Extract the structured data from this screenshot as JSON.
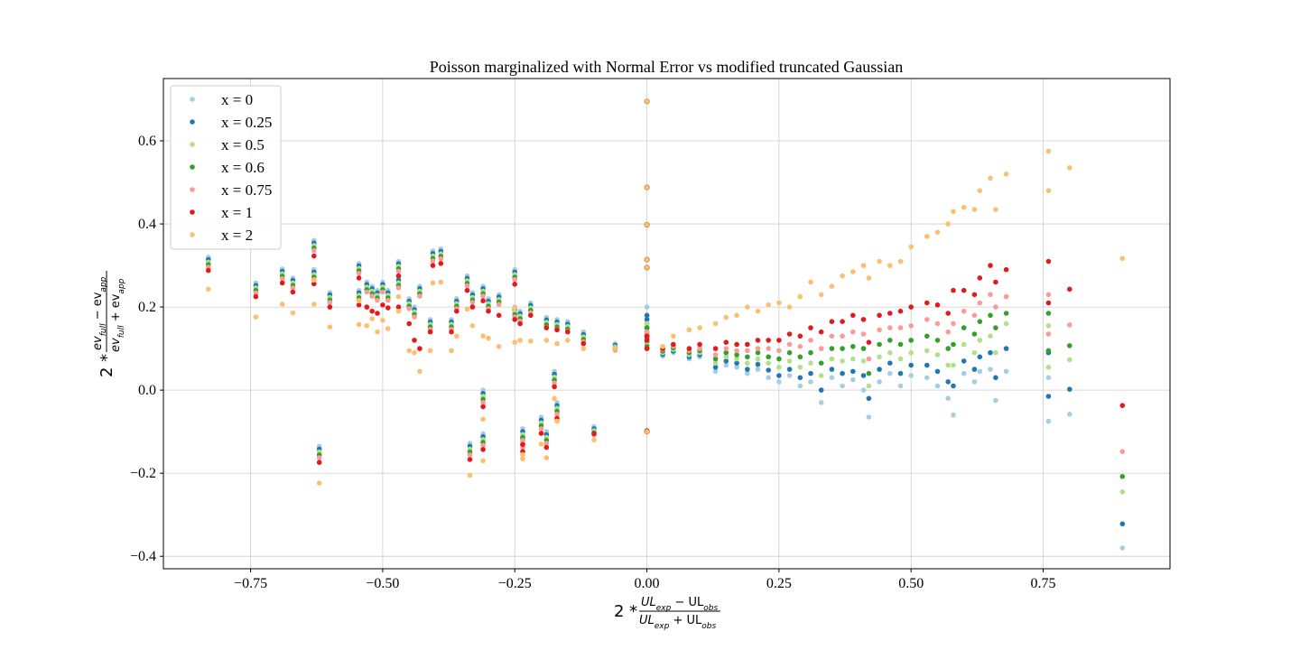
{
  "chart_data": {
    "type": "scatter",
    "title": "Poisson marginalized with Normal Error vs modified truncated Gaussian",
    "xlabel": {
      "prefix": "2 *",
      "numerator": "UL_exp − UL_obs",
      "denominator": "UL_exp + UL_obs",
      "num_parts": [
        "UL",
        "exp",
        " − UL",
        "obs"
      ],
      "den_parts": [
        "UL",
        "exp",
        " + UL",
        "obs"
      ]
    },
    "ylabel": {
      "prefix": "2 *",
      "numerator": "ev_full − ev_app",
      "denominator": "ev_full + ev_app",
      "num_parts": [
        "ev",
        "full",
        " − ev",
        "app"
      ],
      "den_parts": [
        "ev",
        "full",
        " + ev",
        "app"
      ]
    },
    "xlim": [
      -0.915,
      0.99
    ],
    "ylim": [
      -0.43,
      0.75
    ],
    "xticks": [
      -0.75,
      -0.5,
      -0.25,
      0.0,
      0.25,
      0.5,
      0.75
    ],
    "xtick_labels": [
      "−0.75",
      "−0.50",
      "−0.25",
      "0.00",
      "0.25",
      "0.50",
      "0.75"
    ],
    "yticks": [
      -0.4,
      -0.2,
      0.0,
      0.2,
      0.4,
      0.6
    ],
    "ytick_labels": [
      "−0.4",
      "−0.2",
      "0.0",
      "0.2",
      "0.4",
      "0.6"
    ],
    "grid": true,
    "legend_position": "top-left",
    "series": [
      {
        "name": "x = 0",
        "color": "#a6cee3",
        "key": "x0"
      },
      {
        "name": "x = 0.25",
        "color": "#1f78b4",
        "key": "x025"
      },
      {
        "name": "x = 0.5",
        "color": "#b2df8a",
        "key": "x05"
      },
      {
        "name": "x = 0.6",
        "color": "#33a02c",
        "key": "x06"
      },
      {
        "name": "x = 0.75",
        "color": "#fb9a99",
        "key": "x075"
      },
      {
        "name": "x = 1",
        "color": "#e31a1c",
        "key": "x1"
      },
      {
        "name": "x = 2",
        "color": "#fdbf6f",
        "key": "x2"
      }
    ],
    "points": [
      {
        "x": -0.83,
        "x0": 0.32,
        "x025": 0.314,
        "x05": 0.308,
        "x06": 0.302,
        "x075": 0.296,
        "x1": 0.288,
        "x2": 0.243
      },
      {
        "x": -0.74,
        "x0": 0.258,
        "x025": 0.252,
        "x05": 0.246,
        "x06": 0.24,
        "x075": 0.234,
        "x1": 0.225,
        "x2": 0.176
      },
      {
        "x": -0.69,
        "x0": 0.292,
        "x025": 0.286,
        "x05": 0.28,
        "x06": 0.274,
        "x075": 0.268,
        "x1": 0.258,
        "x2": 0.207
      },
      {
        "x": -0.67,
        "x0": 0.27,
        "x025": 0.264,
        "x05": 0.258,
        "x06": 0.252,
        "x075": 0.246,
        "x1": 0.236,
        "x2": 0.186
      },
      {
        "x": -0.63,
        "x0": 0.36,
        "x025": 0.354,
        "x05": 0.348,
        "x06": 0.342,
        "x075": 0.336,
        "x1": 0.323,
        "x2": 0.265
      },
      {
        "x": -0.63,
        "x0": 0.29,
        "x025": 0.284,
        "x05": 0.278,
        "x06": 0.272,
        "x075": 0.266,
        "x1": 0.256,
        "x2": 0.207
      },
      {
        "x": -0.62,
        "x0": -0.135,
        "x025": -0.142,
        "x05": -0.149,
        "x06": -0.156,
        "x075": -0.163,
        "x1": -0.174,
        "x2": -0.224
      },
      {
        "x": -0.6,
        "x0": 0.235,
        "x025": 0.229,
        "x05": 0.223,
        "x06": 0.217,
        "x075": 0.211,
        "x1": 0.2,
        "x2": 0.152
      },
      {
        "x": -0.545,
        "x0": 0.305,
        "x025": 0.299,
        "x05": 0.293,
        "x06": 0.287,
        "x075": 0.281,
        "x1": 0.27,
        "x2": 0.215
      },
      {
        "x": -0.545,
        "x0": 0.24,
        "x025": 0.234,
        "x05": 0.228,
        "x06": 0.222,
        "x075": 0.216,
        "x1": 0.205,
        "x2": 0.158
      },
      {
        "x": -0.53,
        "x0": 0.26,
        "x025": 0.254,
        "x05": 0.248,
        "x06": 0.242,
        "x075": 0.236,
        "x1": 0.2,
        "x2": 0.155
      },
      {
        "x": -0.52,
        "x0": 0.25,
        "x025": 0.244,
        "x05": 0.238,
        "x06": 0.232,
        "x075": 0.226,
        "x1": 0.19,
        "x2": 0.172
      },
      {
        "x": -0.51,
        "x0": 0.24,
        "x025": 0.234,
        "x05": 0.228,
        "x06": 0.222,
        "x075": 0.216,
        "x1": 0.185,
        "x2": 0.14
      },
      {
        "x": -0.5,
        "x0": 0.26,
        "x025": 0.254,
        "x05": 0.248,
        "x06": 0.242,
        "x075": 0.236,
        "x1": 0.205,
        "x2": 0.168
      },
      {
        "x": -0.49,
        "x0": 0.24,
        "x025": 0.234,
        "x05": 0.228,
        "x06": 0.222,
        "x075": 0.216,
        "x1": 0.198,
        "x2": 0.148
      },
      {
        "x": -0.47,
        "x0": 0.31,
        "x025": 0.304,
        "x05": 0.298,
        "x06": 0.292,
        "x075": 0.286,
        "x1": 0.275,
        "x2": 0.225
      },
      {
        "x": -0.47,
        "x0": 0.27,
        "x025": 0.264,
        "x05": 0.258,
        "x06": 0.252,
        "x075": 0.246,
        "x1": 0.2,
        "x2": 0.19
      },
      {
        "x": -0.45,
        "x0": 0.22,
        "x025": 0.214,
        "x05": 0.208,
        "x06": 0.202,
        "x075": 0.196,
        "x1": 0.16,
        "x2": 0.095
      },
      {
        "x": -0.44,
        "x0": 0.2,
        "x025": 0.194,
        "x05": 0.188,
        "x06": 0.182,
        "x075": 0.176,
        "x1": 0.12,
        "x2": 0.09
      },
      {
        "x": -0.43,
        "x0": 0.25,
        "x025": 0.244,
        "x05": 0.238,
        "x06": 0.232,
        "x075": 0.226,
        "x1": 0.1,
        "x2": 0.045
      },
      {
        "x": -0.41,
        "x0": 0.17,
        "x025": 0.164,
        "x05": 0.158,
        "x06": 0.152,
        "x075": 0.146,
        "x1": 0.14,
        "x2": 0.095
      },
      {
        "x": -0.405,
        "x0": 0.335,
        "x025": 0.329,
        "x05": 0.323,
        "x06": 0.317,
        "x075": 0.311,
        "x1": 0.3,
        "x2": 0.258
      },
      {
        "x": -0.39,
        "x0": 0.34,
        "x025": 0.334,
        "x05": 0.328,
        "x06": 0.322,
        "x075": 0.316,
        "x1": 0.305,
        "x2": 0.26
      },
      {
        "x": -0.37,
        "x0": 0.17,
        "x025": 0.164,
        "x05": 0.158,
        "x06": 0.152,
        "x075": 0.146,
        "x1": 0.14,
        "x2": 0.095
      },
      {
        "x": -0.36,
        "x0": 0.22,
        "x025": 0.214,
        "x05": 0.208,
        "x06": 0.202,
        "x075": 0.196,
        "x1": 0.19,
        "x2": 0.13
      },
      {
        "x": -0.34,
        "x0": 0.275,
        "x025": 0.269,
        "x05": 0.263,
        "x06": 0.257,
        "x075": 0.251,
        "x1": 0.24,
        "x2": 0.195
      },
      {
        "x": -0.33,
        "x0": 0.235,
        "x025": 0.229,
        "x05": 0.223,
        "x06": 0.217,
        "x075": 0.211,
        "x1": 0.2,
        "x2": 0.155
      },
      {
        "x": -0.31,
        "x0": 0.25,
        "x025": 0.244,
        "x05": 0.238,
        "x06": 0.232,
        "x075": 0.226,
        "x1": 0.215,
        "x2": 0.13
      },
      {
        "x": -0.3,
        "x0": 0.22,
        "x025": 0.214,
        "x05": 0.208,
        "x06": 0.202,
        "x075": 0.196,
        "x1": 0.19,
        "x2": 0.125
      },
      {
        "x": -0.28,
        "x0": 0.23,
        "x025": 0.224,
        "x05": 0.218,
        "x06": 0.212,
        "x075": 0.206,
        "x1": 0.18,
        "x2": 0.105
      },
      {
        "x": -0.25,
        "x0": 0.29,
        "x025": 0.284,
        "x05": 0.278,
        "x06": 0.272,
        "x075": 0.266,
        "x1": 0.255,
        "x2": 0.198
      },
      {
        "x": -0.25,
        "x0": 0.2,
        "x025": 0.194,
        "x05": 0.188,
        "x06": 0.182,
        "x075": 0.176,
        "x1": 0.17,
        "x2": 0.115
      },
      {
        "x": -0.24,
        "x0": 0.19,
        "x025": 0.184,
        "x05": 0.178,
        "x06": 0.172,
        "x075": 0.166,
        "x1": 0.16,
        "x2": 0.12
      },
      {
        "x": -0.22,
        "x0": 0.21,
        "x025": 0.204,
        "x05": 0.198,
        "x06": 0.192,
        "x075": 0.186,
        "x1": 0.18,
        "x2": 0.118
      },
      {
        "x": -0.19,
        "x0": 0.175,
        "x025": 0.169,
        "x05": 0.163,
        "x06": 0.157,
        "x075": 0.151,
        "x1": 0.15,
        "x2": 0.12
      },
      {
        "x": -0.17,
        "x0": 0.17,
        "x025": 0.164,
        "x05": 0.158,
        "x06": 0.152,
        "x075": 0.146,
        "x1": 0.145,
        "x2": 0.112
      },
      {
        "x": -0.15,
        "x0": 0.165,
        "x025": 0.159,
        "x05": 0.153,
        "x06": 0.147,
        "x075": 0.141,
        "x1": 0.14,
        "x2": 0.12
      },
      {
        "x": -0.12,
        "x0": 0.14,
        "x025": 0.134,
        "x05": 0.128,
        "x06": 0.122,
        "x075": 0.116,
        "x1": 0.112,
        "x2": 0.1
      },
      {
        "x": -0.06,
        "x0": 0.112,
        "x025": 0.108,
        "x05": 0.104,
        "x06": 0.1,
        "x075": 0.096,
        "x1": 0.1,
        "x2": 0.1
      },
      {
        "x": -0.335,
        "x0": -0.128,
        "x025": -0.135,
        "x05": -0.142,
        "x06": -0.149,
        "x075": -0.156,
        "x1": -0.167,
        "x2": -0.205
      },
      {
        "x": -0.31,
        "x0": 0.0,
        "x025": -0.008,
        "x05": -0.015,
        "x06": -0.022,
        "x075": -0.03,
        "x1": -0.04,
        "x2": -0.07
      },
      {
        "x": -0.31,
        "x0": -0.105,
        "x025": -0.112,
        "x05": -0.119,
        "x06": -0.126,
        "x075": -0.133,
        "x1": -0.143,
        "x2": -0.17
      },
      {
        "x": -0.235,
        "x0": -0.093,
        "x025": -0.1,
        "x05": -0.107,
        "x06": -0.114,
        "x075": -0.121,
        "x1": -0.131,
        "x2": -0.165
      },
      {
        "x": -0.235,
        "x0": -0.11,
        "x025": -0.117,
        "x05": -0.124,
        "x06": -0.131,
        "x075": -0.138,
        "x1": -0.148,
        "x2": -0.155
      },
      {
        "x": -0.2,
        "x0": -0.065,
        "x025": -0.072,
        "x05": -0.079,
        "x06": -0.086,
        "x075": -0.093,
        "x1": -0.104,
        "x2": -0.13
      },
      {
        "x": -0.19,
        "x0": -0.1,
        "x025": -0.107,
        "x05": -0.114,
        "x06": -0.121,
        "x075": -0.128,
        "x1": -0.138,
        "x2": -0.163
      },
      {
        "x": -0.175,
        "x0": 0.045,
        "x025": 0.038,
        "x05": 0.031,
        "x06": 0.024,
        "x075": 0.017,
        "x1": 0.008,
        "x2": -0.02
      },
      {
        "x": -0.17,
        "x0": -0.03,
        "x025": -0.037,
        "x05": -0.044,
        "x06": -0.051,
        "x075": -0.058,
        "x1": -0.068,
        "x2": -0.075
      },
      {
        "x": -0.1,
        "x0": -0.088,
        "x025": -0.093,
        "x05": -0.098,
        "x06": -0.103,
        "x075": -0.108,
        "x1": -0.105,
        "x2": -0.12
      },
      {
        "x": 0.0,
        "x0": 0.2,
        "x025": 0.18,
        "x05": 0.16,
        "x06": 0.15,
        "x075": 0.14,
        "x1": 0.13,
        "x2": 0.695
      },
      {
        "x": 0.0,
        "x0": 0.12,
        "x025": 0.115,
        "x05": 0.11,
        "x06": 0.105,
        "x075": 0.1,
        "x1": 0.1,
        "x2": 0.488
      },
      {
        "x": 0.0,
        "x0": -0.098,
        "x025": -0.098,
        "x05": -0.098,
        "x06": -0.098,
        "x075": -0.098,
        "x1": -0.098,
        "x2": 0.398
      },
      {
        "x": 0.0,
        "x0": 0.15,
        "x025": 0.14,
        "x05": 0.13,
        "x06": 0.125,
        "x075": 0.12,
        "x1": 0.12,
        "x2": 0.314
      },
      {
        "x": 0.0,
        "x0": 0.17,
        "x025": 0.16,
        "x05": 0.15,
        "x06": 0.14,
        "x075": 0.135,
        "x1": 0.13,
        "x2": 0.295
      },
      {
        "x": 0.0,
        "x0": 0.18,
        "x025": 0.17,
        "x05": 0.16,
        "x06": 0.15,
        "x075": 0.14,
        "x1": 0.13,
        "x2": -0.1
      },
      {
        "x": 0.03,
        "x0": 0.082,
        "x025": 0.086,
        "x05": 0.09,
        "x06": 0.094,
        "x075": 0.098,
        "x1": 0.1,
        "x2": 0.105
      },
      {
        "x": 0.05,
        "x0": 0.09,
        "x025": 0.094,
        "x05": 0.098,
        "x06": 0.102,
        "x075": 0.106,
        "x1": 0.11,
        "x2": 0.13
      },
      {
        "x": 0.08,
        "x0": 0.075,
        "x025": 0.08,
        "x05": 0.085,
        "x06": 0.09,
        "x075": 0.095,
        "x1": 0.1,
        "x2": 0.145
      },
      {
        "x": 0.1,
        "x0": 0.08,
        "x025": 0.085,
        "x05": 0.09,
        "x06": 0.095,
        "x075": 0.1,
        "x1": 0.11,
        "x2": 0.15
      },
      {
        "x": 0.13,
        "x0": 0.045,
        "x025": 0.055,
        "x05": 0.065,
        "x06": 0.075,
        "x075": 0.085,
        "x1": 0.1,
        "x2": 0.16
      },
      {
        "x": 0.15,
        "x0": 0.06,
        "x025": 0.07,
        "x05": 0.08,
        "x06": 0.09,
        "x075": 0.1,
        "x1": 0.115,
        "x2": 0.175
      },
      {
        "x": 0.17,
        "x0": 0.055,
        "x025": 0.065,
        "x05": 0.075,
        "x06": 0.085,
        "x075": 0.095,
        "x1": 0.11,
        "x2": 0.18
      },
      {
        "x": 0.19,
        "x0": 0.04,
        "x025": 0.05,
        "x05": 0.065,
        "x06": 0.08,
        "x075": 0.095,
        "x1": 0.11,
        "x2": 0.2
      },
      {
        "x": 0.21,
        "x0": 0.05,
        "x025": 0.062,
        "x05": 0.075,
        "x06": 0.09,
        "x075": 0.1,
        "x1": 0.12,
        "x2": 0.19
      },
      {
        "x": 0.23,
        "x0": 0.03,
        "x025": 0.048,
        "x05": 0.065,
        "x06": 0.08,
        "x075": 0.1,
        "x1": 0.12,
        "x2": 0.205
      },
      {
        "x": 0.25,
        "x0": 0.02,
        "x025": 0.035,
        "x05": 0.055,
        "x06": 0.075,
        "x075": 0.095,
        "x1": 0.12,
        "x2": 0.21
      },
      {
        "x": 0.27,
        "x0": 0.035,
        "x025": 0.05,
        "x05": 0.07,
        "x06": 0.09,
        "x075": 0.11,
        "x1": 0.135,
        "x2": 0.2
      },
      {
        "x": 0.29,
        "x0": 0.01,
        "x025": 0.03,
        "x05": 0.055,
        "x06": 0.08,
        "x075": 0.105,
        "x1": 0.13,
        "x2": 0.225
      },
      {
        "x": 0.31,
        "x0": 0.02,
        "x025": 0.04,
        "x05": 0.065,
        "x06": 0.09,
        "x075": 0.12,
        "x1": 0.15,
        "x2": 0.26
      },
      {
        "x": 0.33,
        "x0": -0.03,
        "x025": 0.0,
        "x05": 0.035,
        "x06": 0.065,
        "x075": 0.1,
        "x1": 0.14,
        "x2": 0.23
      },
      {
        "x": 0.35,
        "x0": 0.03,
        "x025": 0.05,
        "x05": 0.075,
        "x06": 0.1,
        "x075": 0.13,
        "x1": 0.165,
        "x2": 0.25
      },
      {
        "x": 0.37,
        "x0": 0.01,
        "x025": 0.04,
        "x05": 0.07,
        "x06": 0.1,
        "x075": 0.13,
        "x1": 0.165,
        "x2": 0.275
      },
      {
        "x": 0.39,
        "x0": 0.025,
        "x025": 0.045,
        "x05": 0.075,
        "x06": 0.105,
        "x075": 0.14,
        "x1": 0.18,
        "x2": 0.285
      },
      {
        "x": 0.41,
        "x0": 0.0,
        "x025": 0.035,
        "x05": 0.07,
        "x06": 0.1,
        "x075": 0.135,
        "x1": 0.17,
        "x2": 0.3
      },
      {
        "x": 0.42,
        "x0": -0.065,
        "x025": -0.02,
        "x05": 0.01,
        "x06": 0.04,
        "x075": 0.075,
        "x1": 0.115,
        "x2": 0.27
      },
      {
        "x": 0.44,
        "x0": 0.02,
        "x025": 0.05,
        "x05": 0.08,
        "x06": 0.11,
        "x075": 0.145,
        "x1": 0.18,
        "x2": 0.31
      },
      {
        "x": 0.46,
        "x0": 0.04,
        "x025": 0.065,
        "x05": 0.09,
        "x06": 0.12,
        "x075": 0.15,
        "x1": 0.185,
        "x2": 0.3
      },
      {
        "x": 0.48,
        "x0": 0.01,
        "x025": 0.04,
        "x05": 0.075,
        "x06": 0.11,
        "x075": 0.15,
        "x1": 0.19,
        "x2": 0.31
      },
      {
        "x": 0.5,
        "x0": 0.035,
        "x025": 0.06,
        "x05": 0.09,
        "x06": 0.12,
        "x075": 0.155,
        "x1": 0.2,
        "x2": 0.345
      },
      {
        "x": 0.53,
        "x0": 0.03,
        "x025": 0.06,
        "x05": 0.095,
        "x06": 0.13,
        "x075": 0.17,
        "x1": 0.21,
        "x2": 0.37
      },
      {
        "x": 0.55,
        "x0": 0.01,
        "x025": 0.045,
        "x05": 0.085,
        "x06": 0.12,
        "x075": 0.16,
        "x1": 0.205,
        "x2": 0.38
      },
      {
        "x": 0.57,
        "x0": -0.02,
        "x025": 0.02,
        "x05": 0.06,
        "x06": 0.1,
        "x075": 0.14,
        "x1": 0.185,
        "x2": 0.4
      },
      {
        "x": 0.58,
        "x0": -0.06,
        "x025": 0.01,
        "x05": 0.06,
        "x06": 0.11,
        "x075": 0.16,
        "x1": 0.24,
        "x2": 0.43
      },
      {
        "x": 0.6,
        "x0": 0.04,
        "x025": 0.07,
        "x05": 0.11,
        "x06": 0.15,
        "x075": 0.19,
        "x1": 0.24,
        "x2": 0.44
      },
      {
        "x": 0.62,
        "x0": 0.02,
        "x025": 0.05,
        "x05": 0.09,
        "x06": 0.135,
        "x075": 0.18,
        "x1": 0.23,
        "x2": 0.435
      },
      {
        "x": 0.63,
        "x0": 0.045,
        "x025": 0.08,
        "x05": 0.12,
        "x06": 0.165,
        "x075": 0.21,
        "x1": 0.27,
        "x2": 0.48
      },
      {
        "x": 0.65,
        "x0": 0.05,
        "x025": 0.09,
        "x05": 0.13,
        "x06": 0.18,
        "x075": 0.23,
        "x1": 0.3,
        "x2": 0.51
      },
      {
        "x": 0.66,
        "x0": -0.025,
        "x025": 0.03,
        "x05": 0.09,
        "x06": 0.15,
        "x075": 0.2,
        "x1": 0.26,
        "x2": 0.435
      },
      {
        "x": 0.68,
        "x0": 0.045,
        "x025": 0.1,
        "x05": 0.16,
        "x06": 0.185,
        "x075": 0.225,
        "x1": 0.29,
        "x2": 0.52
      },
      {
        "x": 0.76,
        "x0": -0.075,
        "x025": -0.015,
        "x05": 0.055,
        "x06": 0.095,
        "x075": 0.135,
        "x1": 0.21,
        "x2": 0.48
      },
      {
        "x": 0.76,
        "x0": 0.03,
        "x025": 0.09,
        "x05": 0.155,
        "x06": 0.185,
        "x075": 0.23,
        "x1": 0.31,
        "x2": 0.575
      },
      {
        "x": 0.8,
        "x0": -0.058,
        "x025": 0.002,
        "x05": 0.073,
        "x06": 0.107,
        "x075": 0.157,
        "x1": 0.243,
        "x2": 0.535
      },
      {
        "x": 0.9,
        "x0": -0.38,
        "x025": -0.322,
        "x05": -0.245,
        "x06": -0.208,
        "x075": -0.148,
        "x1": -0.037,
        "x2": 0.317
      }
    ]
  }
}
